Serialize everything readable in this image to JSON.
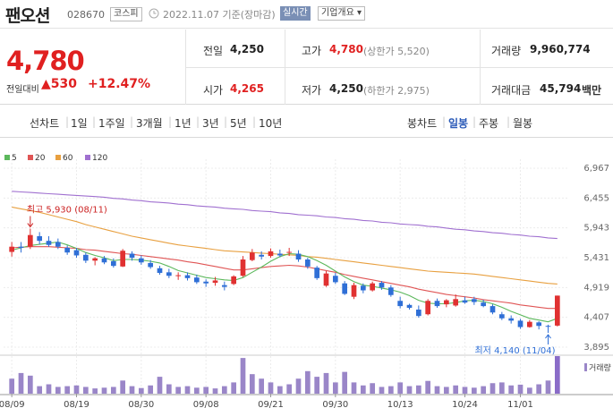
{
  "header": {
    "name": "팬오션",
    "code": "028670",
    "market": "코스피",
    "date": "2022.11.07 기준(장마감)",
    "realtime_label": "실시간",
    "company_info_label": "기업개요 ▾"
  },
  "quote": {
    "price": "4,780",
    "change_label": "전일대비",
    "change_value": "▲530",
    "change_pct": "+12.47%",
    "prev_close_label": "전일",
    "prev_close": "4,250",
    "high_label": "고가",
    "high": "4,780",
    "upper_limit": "(상한가 5,520)",
    "volume_label": "거래량",
    "volume": "9,960,774",
    "open_label": "시가",
    "open": "4,265",
    "low_label": "저가",
    "low": "4,250",
    "lower_limit": "(하한가 2,975)",
    "value_label": "거래대금",
    "value": "45,794",
    "value_unit": "백만"
  },
  "tabs": {
    "line_chart": "선차트",
    "periods": [
      "1일",
      "1주일",
      "3개월",
      "1년",
      "3년",
      "5년",
      "10년"
    ],
    "candle_chart": "봉차트",
    "candle_periods": [
      "일봉",
      "주봉",
      "월봉"
    ],
    "active_candle": "일봉"
  },
  "colors": {
    "up": "#e03131",
    "down": "#2f6fd6",
    "ma5": "#5cb85c",
    "ma20": "#e05555",
    "ma60": "#e8a040",
    "ma120": "#a070d0",
    "volume": "#9a86c8",
    "volume_last": "#8a6cc8"
  },
  "chart_data": {
    "type": "candlestick",
    "legend": [
      "5",
      "20",
      "60",
      "120"
    ],
    "y_ticks": [
      "6,967",
      "6,455",
      "5,943",
      "5,431",
      "4,919",
      "4,407",
      "3,895"
    ],
    "ylim": [
      3895,
      6967
    ],
    "x_labels": [
      "08/09",
      "08/19",
      "08/30",
      "09/08",
      "09/21",
      "09/30",
      "10/13",
      "10/24",
      "11/01"
    ],
    "x_label_index": [
      0,
      7,
      14,
      21,
      28,
      35,
      42,
      49,
      55
    ],
    "high_annotation": "최고 5,930 (08/11)",
    "low_annotation": "최저 4,140 (11/04)",
    "volume_label": "거래량",
    "candles": [
      [
        5530,
        5700,
        5450,
        5620
      ],
      [
        5620,
        5700,
        5520,
        5600
      ],
      [
        5620,
        5930,
        5580,
        5820
      ],
      [
        5800,
        5870,
        5660,
        5720
      ],
      [
        5720,
        5800,
        5620,
        5650
      ],
      [
        5700,
        5760,
        5580,
        5620
      ],
      [
        5600,
        5640,
        5480,
        5520
      ],
      [
        5560,
        5600,
        5430,
        5470
      ],
      [
        5480,
        5520,
        5340,
        5380
      ],
      [
        5380,
        5440,
        5300,
        5420
      ],
      [
        5420,
        5460,
        5320,
        5350
      ],
      [
        5370,
        5420,
        5260,
        5290
      ],
      [
        5280,
        5580,
        5270,
        5550
      ],
      [
        5500,
        5540,
        5380,
        5430
      ],
      [
        5420,
        5470,
        5310,
        5350
      ],
      [
        5340,
        5390,
        5240,
        5270
      ],
      [
        5250,
        5290,
        5140,
        5170
      ],
      [
        5180,
        5240,
        5080,
        5120
      ],
      [
        5120,
        5180,
        5050,
        5130
      ],
      [
        5130,
        5180,
        5040,
        5080
      ],
      [
        5090,
        5140,
        4980,
        5010
      ],
      [
        5020,
        5060,
        4930,
        4990
      ],
      [
        5000,
        5100,
        4950,
        5040
      ],
      [
        4960,
        5020,
        4870,
        4930
      ],
      [
        4980,
        5130,
        4960,
        5110
      ],
      [
        5120,
        5460,
        5100,
        5400
      ],
      [
        5390,
        5580,
        5370,
        5520
      ],
      [
        5480,
        5540,
        5400,
        5450
      ],
      [
        5460,
        5590,
        5430,
        5540
      ],
      [
        5500,
        5570,
        5440,
        5470
      ],
      [
        5520,
        5600,
        5460,
        5530
      ],
      [
        5500,
        5560,
        5360,
        5400
      ],
      [
        5400,
        5430,
        5240,
        5280
      ],
      [
        5260,
        5290,
        5050,
        5080
      ],
      [
        4950,
        5200,
        4930,
        5160
      ],
      [
        5120,
        5170,
        4980,
        5010
      ],
      [
        4990,
        5030,
        4790,
        4810
      ],
      [
        4760,
        5000,
        4720,
        4960
      ],
      [
        4950,
        4990,
        4820,
        4870
      ],
      [
        4870,
        5020,
        4850,
        4990
      ],
      [
        5000,
        5030,
        4880,
        4920
      ],
      [
        4920,
        4960,
        4760,
        4790
      ],
      [
        4690,
        4760,
        4560,
        4600
      ],
      [
        4620,
        4640,
        4540,
        4570
      ],
      [
        4540,
        4610,
        4400,
        4430
      ],
      [
        4460,
        4720,
        4440,
        4690
      ],
      [
        4690,
        4730,
        4570,
        4600
      ],
      [
        4630,
        4720,
        4580,
        4700
      ],
      [
        4610,
        4800,
        4590,
        4720
      ],
      [
        4700,
        4760,
        4640,
        4660
      ],
      [
        4720,
        4760,
        4620,
        4670
      ],
      [
        4660,
        4710,
        4580,
        4600
      ],
      [
        4600,
        4630,
        4460,
        4490
      ],
      [
        4460,
        4500,
        4360,
        4390
      ],
      [
        4390,
        4440,
        4300,
        4350
      ],
      [
        4350,
        4380,
        4210,
        4240
      ],
      [
        4240,
        4360,
        4230,
        4330
      ],
      [
        4320,
        4340,
        4200,
        4260
      ],
      [
        4260,
        4280,
        4140,
        4250
      ],
      [
        4265,
        4780,
        4250,
        4780
      ]
    ],
    "ma5": [
      5560,
      5600,
      5640,
      5660,
      5680,
      5700,
      5650,
      5590,
      5520,
      5470,
      5430,
      5380,
      5400,
      5400,
      5390,
      5370,
      5340,
      5280,
      5210,
      5170,
      5130,
      5090,
      5070,
      5050,
      5040,
      5090,
      5180,
      5270,
      5370,
      5450,
      5500,
      5490,
      5450,
      5380,
      5300,
      5200,
      5100,
      5020,
      4960,
      4940,
      4910,
      4880,
      4840,
      4780,
      4700,
      4650,
      4640,
      4640,
      4660,
      4690,
      4700,
      4680,
      4640,
      4580,
      4510,
      4450,
      4390,
      4360,
      4330,
      4390
    ],
    "ma20": [
      5600,
      5610,
      5620,
      5620,
      5620,
      5610,
      5600,
      5590,
      5570,
      5560,
      5540,
      5520,
      5500,
      5490,
      5470,
      5450,
      5430,
      5410,
      5390,
      5360,
      5340,
      5310,
      5280,
      5250,
      5220,
      5220,
      5240,
      5260,
      5280,
      5290,
      5300,
      5290,
      5270,
      5240,
      5210,
      5180,
      5140,
      5110,
      5080,
      5050,
      5020,
      4990,
      4960,
      4930,
      4890,
      4860,
      4830,
      4800,
      4780,
      4760,
      4740,
      4710,
      4690,
      4670,
      4650,
      4620,
      4600,
      4580,
      4560,
      4560
    ],
    "ma60": [
      6300,
      6270,
      6240,
      6210,
      6170,
      6130,
      6090,
      6050,
      6000,
      5960,
      5920,
      5880,
      5840,
      5800,
      5770,
      5740,
      5710,
      5680,
      5650,
      5630,
      5610,
      5590,
      5570,
      5550,
      5540,
      5530,
      5520,
      5510,
      5500,
      5490,
      5480,
      5470,
      5450,
      5440,
      5420,
      5400,
      5380,
      5360,
      5340,
      5320,
      5300,
      5280,
      5260,
      5240,
      5220,
      5200,
      5190,
      5180,
      5170,
      5160,
      5150,
      5130,
      5110,
      5090,
      5070,
      5050,
      5030,
      5010,
      4990,
      4980
    ],
    "ma120": [
      6570,
      6560,
      6550,
      6540,
      6530,
      6520,
      6510,
      6500,
      6490,
      6480,
      6470,
      6450,
      6440,
      6420,
      6410,
      6390,
      6380,
      6370,
      6350,
      6340,
      6320,
      6310,
      6300,
      6280,
      6270,
      6260,
      6240,
      6230,
      6220,
      6200,
      6190,
      6170,
      6160,
      6150,
      6130,
      6120,
      6100,
      6090,
      6070,
      6060,
      6040,
      6030,
      6010,
      6000,
      5990,
      5970,
      5960,
      5940,
      5920,
      5910,
      5890,
      5880,
      5860,
      5850,
      5830,
      5820,
      5800,
      5790,
      5770,
      5760
    ],
    "volume": [
      40,
      55,
      48,
      20,
      25,
      18,
      20,
      22,
      18,
      14,
      16,
      18,
      35,
      20,
      15,
      22,
      45,
      25,
      18,
      20,
      16,
      18,
      14,
      20,
      30,
      95,
      52,
      40,
      30,
      20,
      25,
      40,
      60,
      45,
      55,
      30,
      58,
      30,
      22,
      28,
      18,
      20,
      30,
      20,
      22,
      34,
      20,
      18,
      22,
      18,
      16,
      20,
      28,
      30,
      22,
      24,
      16,
      25,
      35,
      100
    ]
  }
}
